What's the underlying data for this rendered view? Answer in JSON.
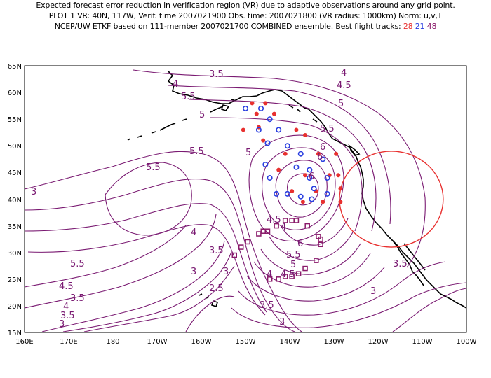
{
  "title": {
    "line1": "Expected forecast error reduction in verification region (VR) due to adaptive observations around any grid point.",
    "line2": "PLOT 1 VR: 40N, 117W, Verif. time 2007021900 Obs. time: 2007021800 (VR radius: 1000km) Norm: u,v,T",
    "line3_prefix": "NCEP/UW ETKF based on 111-member 2007021700 COMBINED ensemble.  Best flight tracks:",
    "track_red": "28",
    "track_blue": "21",
    "track_purple": "48"
  },
  "colors": {
    "contour": "#7a1a72",
    "red": "#e8302f",
    "blue": "#2a3fe0",
    "purple": "#8a1a6a",
    "coast": "#000000"
  },
  "axes": {
    "x_ticks": [
      "160E",
      "170E",
      "180",
      "170W",
      "160W",
      "150W",
      "140W",
      "130W",
      "120W",
      "110W",
      "100W"
    ],
    "y_ticks": [
      "65N",
      "60N",
      "55N",
      "50N",
      "45N",
      "40N",
      "35N",
      "30N",
      "25N",
      "20N",
      "15N"
    ]
  },
  "contour_labels": [
    "3.5",
    "4",
    "4.5",
    "4",
    "5",
    "5.5",
    "5.5",
    "5",
    "5.5",
    "6",
    "6",
    "6",
    "3",
    "4",
    "4.5",
    "5.5",
    "5.5",
    "5",
    "4",
    "3.5",
    "3",
    "3.5",
    "2.5",
    "3",
    "4.5",
    "4",
    "3.5",
    "3",
    "3.5",
    "3",
    "3.5",
    "3",
    "4",
    "4.5",
    "5",
    "5.5",
    "6"
  ],
  "verification_region": {
    "lat": 40,
    "lon": -117,
    "radius_km": 1000
  },
  "tracks": {
    "red": [
      [
        -148.5,
        58
      ],
      [
        -145.5,
        58
      ],
      [
        -147.5,
        56
      ],
      [
        -143.5,
        56
      ],
      [
        -147,
        53.5
      ],
      [
        -138.5,
        53
      ],
      [
        -150.5,
        53
      ],
      [
        -146,
        51
      ],
      [
        -136.5,
        52
      ],
      [
        -141,
        48.5
      ],
      [
        -133.5,
        48.5
      ],
      [
        -136.5,
        44.5
      ],
      [
        -129.5,
        48.5
      ],
      [
        -131,
        44.5
      ],
      [
        -142.5,
        45.5
      ],
      [
        -134,
        41.5
      ],
      [
        -129,
        44.5
      ],
      [
        -139.5,
        41.5
      ],
      [
        -128.5,
        42
      ],
      [
        -132.5,
        39.5
      ],
      [
        -137,
        39.5
      ],
      [
        -128.5,
        39.5
      ]
    ],
    "blue": [
      [
        -150,
        57
      ],
      [
        -146.5,
        57
      ],
      [
        -144.5,
        55
      ],
      [
        -147,
        53
      ],
      [
        -142.5,
        53
      ],
      [
        -145,
        50.5
      ],
      [
        -140.5,
        50
      ],
      [
        -137.5,
        48.5
      ],
      [
        -145.5,
        46.5
      ],
      [
        -144.5,
        44
      ],
      [
        -138.5,
        46
      ],
      [
        -135.5,
        45.5
      ],
      [
        -132.5,
        47.5
      ],
      [
        -143,
        41
      ],
      [
        -135.5,
        44
      ],
      [
        -131.5,
        44
      ],
      [
        -140.5,
        41
      ],
      [
        -134.5,
        42
      ],
      [
        -131.5,
        41
      ],
      [
        -137.5,
        40.5
      ],
      [
        -135,
        40
      ]
    ],
    "purple": [
      [
        -152.5,
        29.5
      ],
      [
        -151,
        31
      ],
      [
        -149.5,
        32
      ],
      [
        -147,
        33.5
      ],
      [
        -146,
        34
      ],
      [
        -145,
        34
      ],
      [
        -143,
        35
      ],
      [
        -141,
        36
      ],
      [
        -139.5,
        36
      ],
      [
        -138.5,
        36
      ],
      [
        -136,
        35
      ],
      [
        -133.5,
        33
      ],
      [
        -133,
        31.5
      ],
      [
        -133,
        32.5
      ],
      [
        -134,
        28.5
      ],
      [
        -136.5,
        27
      ],
      [
        -138,
        26
      ],
      [
        -139.5,
        25.5
      ],
      [
        -141,
        25.5
      ],
      [
        -142.5,
        25
      ],
      [
        -144.5,
        25
      ]
    ]
  }
}
